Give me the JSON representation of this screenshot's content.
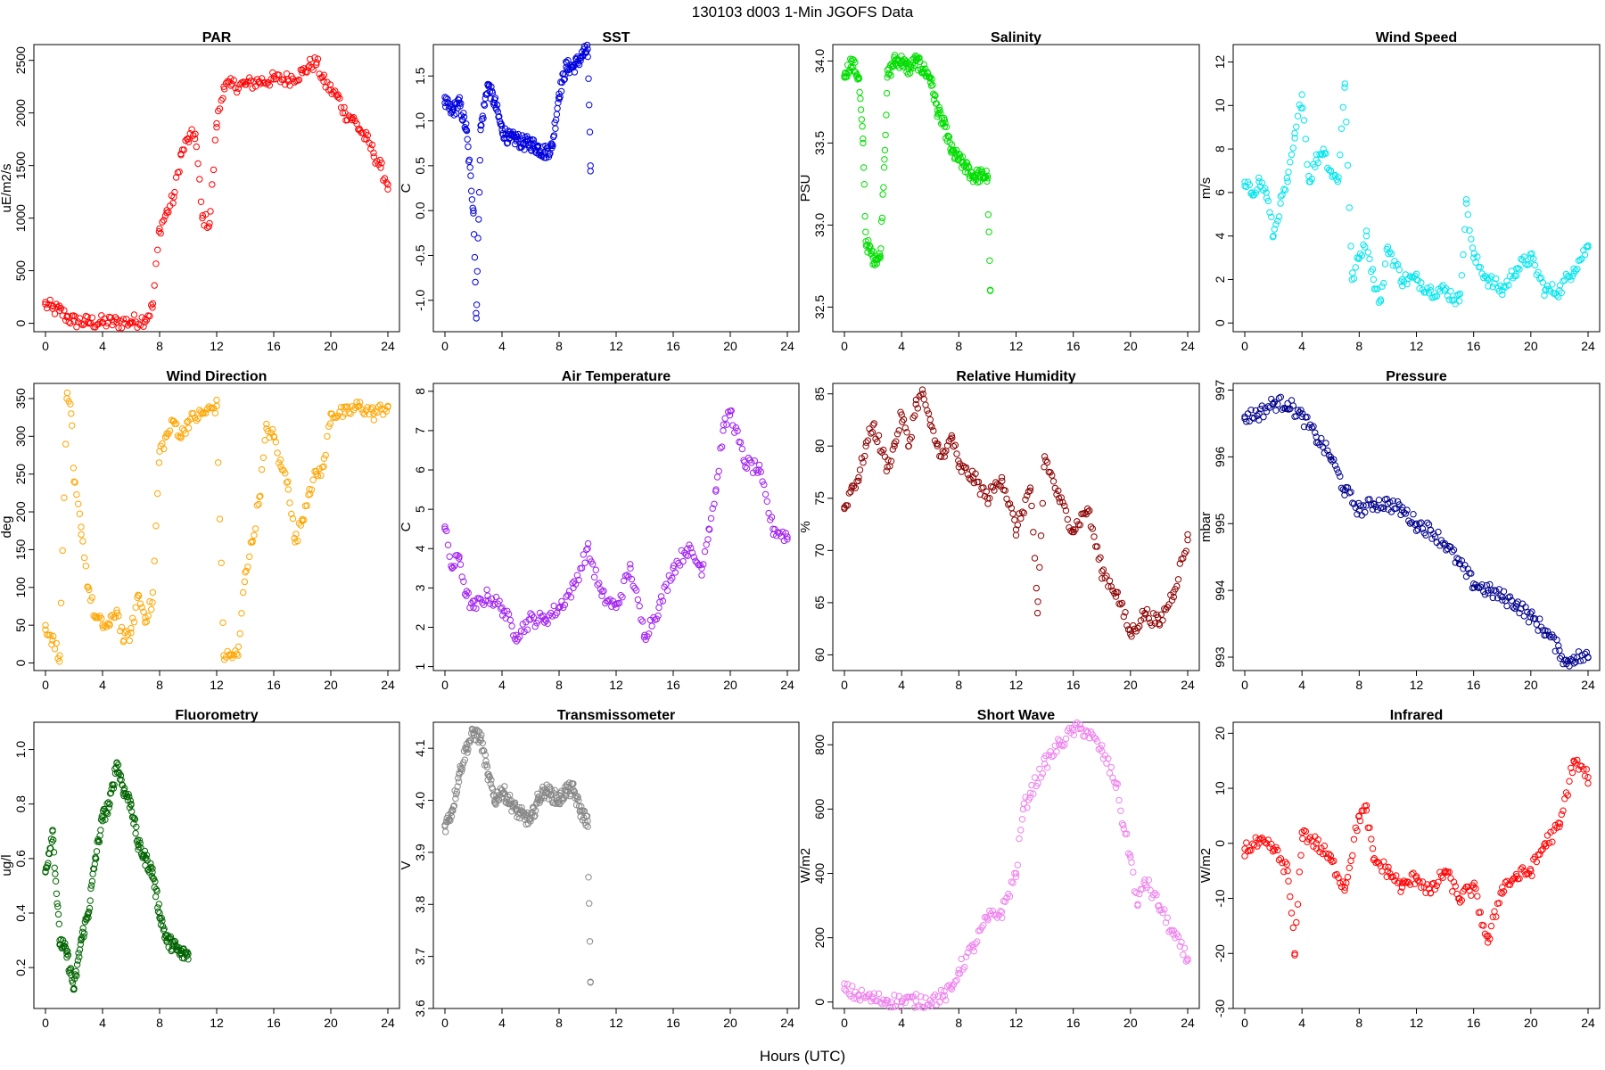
{
  "figure": {
    "title": "130103   d003   1-Min  JGOFS Data",
    "xlabel": "Hours (UTC)"
  },
  "chart_data": [
    {
      "type": "scatter",
      "title": "PAR",
      "ylabel": "uE/m2/s",
      "color": "#ff0000",
      "xlim": [
        0,
        24
      ],
      "ylim": [
        -80,
        2650
      ],
      "xticks": [
        0,
        4,
        8,
        12,
        16,
        20,
        24
      ],
      "yticks": [
        0,
        500,
        1000,
        1500,
        2000,
        2500
      ],
      "x": [
        0,
        0.5,
        1,
        1.5,
        2,
        3,
        4,
        5,
        6,
        7,
        7.5,
        8,
        8.5,
        9,
        9.5,
        10,
        10.5,
        11,
        11.5,
        12,
        12.5,
        13,
        14,
        15,
        16,
        17,
        18,
        18.5,
        19,
        19.5,
        20,
        20.5,
        21,
        21.5,
        22,
        22.5,
        23,
        23.5,
        24
      ],
      "y": [
        180,
        140,
        120,
        60,
        20,
        10,
        10,
        10,
        15,
        40,
        150,
        900,
        1050,
        1200,
        1600,
        1750,
        1800,
        1000,
        950,
        1900,
        2250,
        2260,
        2270,
        2300,
        2320,
        2320,
        2380,
        2450,
        2480,
        2300,
        2220,
        2150,
        2000,
        1950,
        1850,
        1750,
        1620,
        1480,
        1320
      ]
    },
    {
      "type": "scatter",
      "title": "SST",
      "ylabel": "C",
      "color": "#0000dd",
      "xlim": [
        0,
        24
      ],
      "ylim": [
        -1.35,
        1.85
      ],
      "xticks": [
        0,
        4,
        8,
        12,
        16,
        20,
        24
      ],
      "yticks": [
        -1.0,
        -0.5,
        0.0,
        0.5,
        1.0,
        1.5
      ],
      "x": [
        0,
        0.5,
        1,
        1.5,
        2,
        2.2,
        2.5,
        3,
        3.5,
        4,
        4.5,
        5,
        5.5,
        6,
        6.5,
        7,
        7.5,
        8,
        8.5,
        9,
        9.5,
        10,
        10.2
      ],
      "y": [
        1.2,
        1.1,
        1.2,
        0.9,
        0.0,
        -1.2,
        0.9,
        1.4,
        1.2,
        0.9,
        0.8,
        0.8,
        0.75,
        0.75,
        0.7,
        0.65,
        0.7,
        1.3,
        1.6,
        1.6,
        1.7,
        1.8,
        0.5
      ]
    },
    {
      "type": "scatter",
      "title": "Salinity",
      "ylabel": "PSU",
      "color": "#00dd00",
      "xlim": [
        0,
        24
      ],
      "ylim": [
        32.35,
        34.1
      ],
      "xticks": [
        0,
        4,
        8,
        12,
        16,
        20,
        24
      ],
      "yticks": [
        32.5,
        33.0,
        33.5,
        34.0
      ],
      "x": [
        0,
        0.5,
        1,
        1.3,
        1.5,
        2,
        2.5,
        2.8,
        3,
        3.5,
        4,
        4.5,
        5,
        5.5,
        6,
        6.5,
        7,
        7.5,
        8,
        8.5,
        9,
        9.5,
        10,
        10.2
      ],
      "y": [
        33.9,
        34.0,
        33.9,
        33.5,
        32.9,
        32.8,
        32.8,
        33.4,
        33.9,
        34.0,
        34.0,
        33.95,
        34.0,
        33.95,
        33.9,
        33.7,
        33.6,
        33.45,
        33.4,
        33.35,
        33.3,
        33.3,
        33.3,
        32.6
      ]
    },
    {
      "type": "scatter",
      "title": "Wind Speed",
      "ylabel": "m/s",
      "color": "#00e5ee",
      "xlim": [
        0,
        24
      ],
      "ylim": [
        -0.4,
        12.8
      ],
      "xticks": [
        0,
        4,
        8,
        12,
        16,
        20,
        24
      ],
      "yticks": [
        0,
        2,
        4,
        6,
        8,
        10,
        12
      ],
      "x": [
        0,
        0.5,
        1,
        1.5,
        2,
        2.5,
        3,
        3.5,
        4,
        4.5,
        5,
        5.5,
        6,
        6.5,
        7,
        7.5,
        8,
        8.5,
        9,
        9.5,
        10,
        11,
        12,
        13,
        14,
        15,
        15.5,
        16,
        17,
        18,
        19,
        20,
        21,
        22,
        23,
        24
      ],
      "y": [
        6.3,
        6.0,
        6.5,
        6.0,
        4.0,
        5.5,
        6.5,
        8.5,
        10.5,
        6.5,
        7.5,
        8.0,
        7.0,
        6.5,
        11.0,
        2.0,
        3.0,
        4.0,
        2.0,
        1.0,
        3.5,
        2.0,
        2.0,
        1.5,
        1.5,
        1.0,
        5.5,
        3.0,
        2.0,
        1.5,
        2.5,
        3.0,
        1.5,
        1.5,
        2.5,
        3.5
      ]
    },
    {
      "type": "scatter",
      "title": "Wind Direction",
      "ylabel": "deg",
      "color": "#ffa500",
      "xlim": [
        0,
        24
      ],
      "ylim": [
        -10,
        370
      ],
      "xticks": [
        0,
        4,
        8,
        12,
        16,
        20,
        24
      ],
      "yticks": [
        0,
        50,
        100,
        150,
        200,
        250,
        300,
        350
      ],
      "x": [
        0,
        0.5,
        1,
        1.5,
        1.8,
        2,
        2.5,
        3,
        3.5,
        4,
        4.5,
        5,
        5.5,
        6,
        6.5,
        7,
        7.5,
        8,
        8.5,
        9,
        9.5,
        10,
        11,
        12,
        12.5,
        13,
        13.5,
        14,
        14.5,
        15,
        15.5,
        16,
        16.5,
        17,
        17.5,
        18,
        18.5,
        19,
        19.5,
        20,
        21,
        22,
        23,
        24
      ],
      "y": [
        50,
        30,
        10,
        350,
        330,
        240,
        180,
        100,
        60,
        50,
        50,
        70,
        30,
        40,
        90,
        60,
        80,
        280,
        300,
        320,
        300,
        320,
        330,
        340,
        10,
        10,
        10,
        120,
        160,
        220,
        310,
        300,
        260,
        240,
        160,
        190,
        230,
        250,
        260,
        330,
        330,
        340,
        330,
        340
      ]
    },
    {
      "type": "scatter",
      "title": "Air Temperature",
      "ylabel": "C",
      "color": "#a020f0",
      "xlim": [
        0,
        24
      ],
      "ylim": [
        0.9,
        8.2
      ],
      "xticks": [
        0,
        4,
        8,
        12,
        16,
        20,
        24
      ],
      "yticks": [
        1,
        2,
        3,
        4,
        5,
        6,
        7,
        8
      ],
      "x": [
        0,
        0.5,
        1,
        1.5,
        2,
        3,
        4,
        5,
        6,
        7,
        8,
        9,
        10,
        11,
        12,
        13,
        14,
        15,
        16,
        17,
        18,
        18.5,
        19,
        19.5,
        20,
        21,
        22,
        23,
        24
      ],
      "y": [
        4.5,
        3.5,
        3.8,
        2.8,
        2.5,
        2.8,
        2.5,
        1.8,
        2.2,
        2.2,
        2.5,
        3.0,
        4.0,
        2.8,
        2.5,
        3.5,
        1.8,
        2.5,
        3.5,
        4.0,
        3.5,
        4.5,
        5.5,
        7.0,
        7.5,
        6.2,
        6.0,
        4.5,
        4.3
      ]
    },
    {
      "type": "scatter",
      "title": "Relative Humidity",
      "ylabel": "%",
      "color": "#8b0000",
      "xlim": [
        0,
        24
      ],
      "ylim": [
        58.5,
        86
      ],
      "xticks": [
        0,
        4,
        8,
        12,
        16,
        20,
        24
      ],
      "yticks": [
        60,
        65,
        70,
        75,
        80,
        85
      ],
      "x": [
        0,
        0.5,
        1,
        1.5,
        2,
        3,
        3.5,
        4,
        4.5,
        5,
        5.5,
        6,
        6.5,
        7,
        7.5,
        8,
        9,
        10,
        11,
        12,
        13,
        13.5,
        14,
        15,
        16,
        17,
        18,
        19,
        20,
        21,
        22,
        23,
        24
      ],
      "y": [
        74,
        76,
        77,
        80,
        82,
        78,
        80,
        83,
        80,
        84,
        85,
        82,
        80,
        79,
        81,
        78,
        77,
        75,
        77,
        72,
        76,
        64,
        79,
        75,
        72,
        74,
        68,
        66,
        62,
        64,
        63,
        66,
        71
      ]
    },
    {
      "type": "scatter",
      "title": "Pressure",
      "ylabel": "mbar",
      "color": "#00008b",
      "xlim": [
        0,
        24
      ],
      "ylim": [
        992.8,
        997.1
      ],
      "xticks": [
        0,
        4,
        8,
        12,
        16,
        20,
        24
      ],
      "yticks": [
        993,
        994,
        995,
        996,
        997
      ],
      "x": [
        0,
        1,
        2,
        3,
        4,
        5,
        6,
        7,
        8,
        9,
        10,
        11,
        12,
        13,
        14,
        15,
        16,
        17,
        18,
        19,
        20,
        21,
        22,
        22.5,
        23,
        24
      ],
      "y": [
        996.6,
        996.65,
        996.8,
        996.8,
        996.6,
        996.3,
        996.0,
        995.5,
        995.2,
        995.3,
        995.3,
        995.2,
        995.0,
        994.9,
        994.7,
        994.4,
        994.1,
        994.0,
        993.9,
        993.8,
        993.6,
        993.4,
        993.1,
        992.9,
        993.0,
        993.0
      ]
    },
    {
      "type": "scatter",
      "title": "Fluorometry",
      "ylabel": "ug/l",
      "color": "#006400",
      "xlim": [
        0,
        24
      ],
      "ylim": [
        0.05,
        1.1
      ],
      "xticks": [
        0,
        4,
        8,
        12,
        16,
        20,
        24
      ],
      "yticks": [
        0.2,
        0.4,
        0.6,
        0.8,
        1.0
      ],
      "x": [
        0,
        0.5,
        1,
        1.5,
        2,
        2.5,
        3,
        3.5,
        4,
        4.5,
        5,
        5.5,
        6,
        6.5,
        7,
        7.5,
        8,
        8.5,
        9,
        9.5,
        10
      ],
      "y": [
        0.55,
        0.7,
        0.3,
        0.25,
        0.12,
        0.3,
        0.4,
        0.6,
        0.75,
        0.8,
        0.95,
        0.85,
        0.8,
        0.65,
        0.6,
        0.55,
        0.4,
        0.3,
        0.28,
        0.25,
        0.25
      ]
    },
    {
      "type": "scatter",
      "title": "Transmissometer",
      "ylabel": "V",
      "color": "#888888",
      "xlim": [
        0,
        24
      ],
      "ylim": [
        3.6,
        4.15
      ],
      "xticks": [
        0,
        4,
        8,
        12,
        16,
        20,
        24
      ],
      "yticks": [
        3.6,
        3.7,
        3.8,
        3.9,
        4.0,
        4.1
      ],
      "x": [
        0,
        0.5,
        1,
        1.5,
        2,
        2.5,
        3,
        3.5,
        4,
        4.5,
        5,
        5.5,
        6,
        6.5,
        7,
        7.5,
        8,
        8.5,
        9,
        9.5,
        10,
        10.2
      ],
      "y": [
        3.95,
        3.98,
        4.05,
        4.1,
        4.13,
        4.12,
        4.05,
        4.0,
        4.02,
        4.0,
        3.98,
        3.97,
        3.96,
        4.0,
        4.02,
        4.01,
        4.0,
        4.02,
        4.02,
        3.98,
        3.96,
        3.65
      ]
    },
    {
      "type": "scatter",
      "title": "Short Wave",
      "ylabel": "W/m2",
      "color": "#ee82ee",
      "xlim": [
        0,
        24
      ],
      "ylim": [
        -20,
        870
      ],
      "xticks": [
        0,
        4,
        8,
        12,
        16,
        20,
        24
      ],
      "yticks": [
        0,
        200,
        400,
        600,
        800
      ],
      "x": [
        0,
        1,
        2,
        3,
        4,
        5,
        6,
        7,
        7.5,
        8,
        9,
        10,
        11,
        12,
        12.5,
        13,
        14,
        15,
        16,
        16.5,
        17,
        18,
        19,
        19.5,
        20,
        20.5,
        21,
        22,
        23,
        24
      ],
      "y": [
        40,
        20,
        10,
        5,
        3,
        3,
        5,
        20,
        40,
        100,
        170,
        260,
        280,
        400,
        600,
        650,
        740,
        800,
        845,
        850,
        840,
        780,
        680,
        550,
        450,
        300,
        380,
        300,
        210,
        130
      ]
    },
    {
      "type": "scatter",
      "title": "Infrared",
      "ylabel": "W/m2",
      "color": "#ff0000",
      "xlim": [
        0,
        24
      ],
      "ylim": [
        -30,
        22
      ],
      "xticks": [
        0,
        4,
        8,
        12,
        16,
        20,
        24
      ],
      "yticks": [
        -30,
        -20,
        -10,
        0,
        10,
        20
      ],
      "x": [
        0,
        1,
        2,
        3,
        3.5,
        4,
        5,
        6,
        7,
        8,
        8.5,
        9,
        10,
        11,
        12,
        13,
        14,
        15,
        16,
        17,
        18,
        19,
        20,
        21,
        22,
        23,
        24
      ],
      "y": [
        -1,
        0,
        -1,
        -5,
        -20,
        2,
        0,
        -3,
        -8,
        5,
        6,
        -3,
        -5,
        -8,
        -6,
        -9,
        -5,
        -10,
        -8,
        -18,
        -8,
        -6,
        -5,
        0,
        3,
        15,
        12
      ]
    }
  ]
}
